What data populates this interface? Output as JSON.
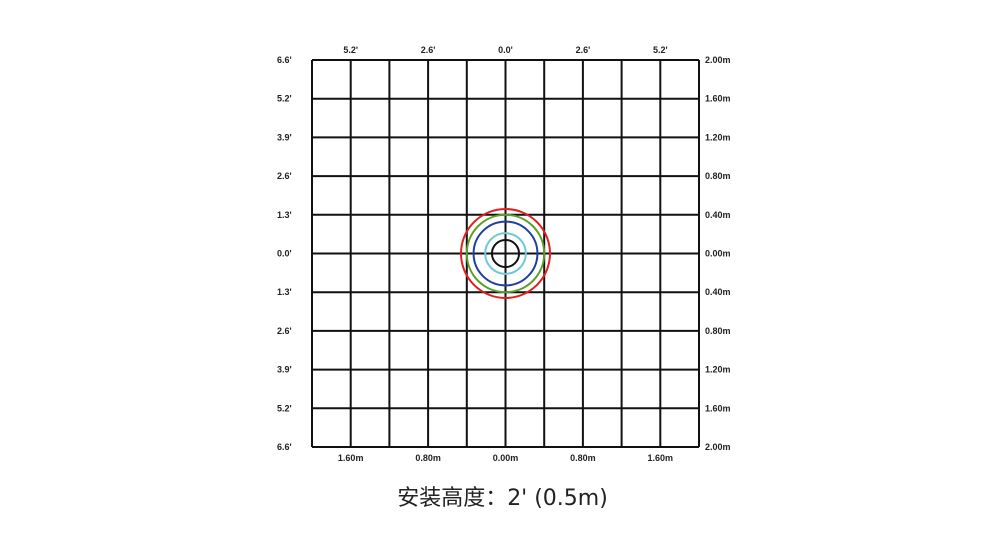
{
  "diagram": {
    "top_labels": [
      "5.2'",
      "2.6'",
      "0.0'",
      "2.6'",
      "5.2'"
    ],
    "bottom_labels": [
      "1.60m",
      "0.80m",
      "0.00m",
      "0.80m",
      "1.60m"
    ],
    "left_labels": [
      "6.6'",
      "5.2'",
      "3.9'",
      "2.6'",
      "1.3'",
      "0.0'",
      "1.3'",
      "2.6'",
      "3.9'",
      "5.2'",
      "6.6'"
    ],
    "right_labels": [
      "2.00m",
      "1.60m",
      "1.20m",
      "0.80m",
      "0.40m",
      "0.00m",
      "0.40m",
      "0.80m",
      "1.20m",
      "1.60m",
      "2.00m"
    ],
    "grid_divisions": 10,
    "circles": [
      {
        "color": "#e02020",
        "radius_m": 0.46
      },
      {
        "color": "#5aa028",
        "radius_m": 0.4
      },
      {
        "color": "#2040a0",
        "radius_m": 0.33
      },
      {
        "color": "#70c8d8",
        "radius_m": 0.21
      },
      {
        "color": "#111111",
        "radius_m": 0.14
      }
    ]
  },
  "caption": "安装高度：2' (0.5m)"
}
